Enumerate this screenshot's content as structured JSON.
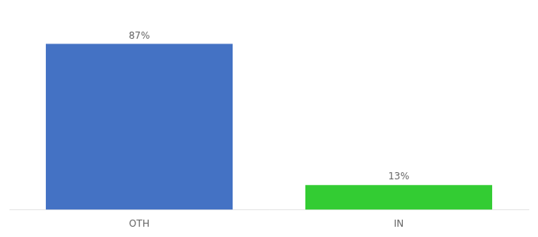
{
  "chart_data": {
    "type": "bar",
    "categories": [
      "OTH",
      "IN"
    ],
    "values": [
      87,
      13
    ],
    "value_labels": [
      "87%",
      "13%"
    ],
    "colors": [
      "#4472C4",
      "#33CC33"
    ],
    "ylim": [
      0,
      100
    ],
    "grid": false,
    "data_labels": true,
    "tick_labels": "x"
  }
}
